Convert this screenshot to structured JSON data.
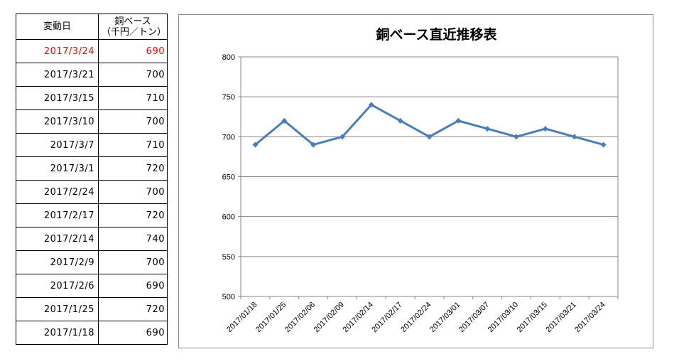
{
  "table": {
    "header_date": "変動日",
    "header_price_line1": "銅ベース",
    "header_price_line2": "（千円／トン）",
    "rows": [
      {
        "date": "2017/3/24",
        "value": "690"
      },
      {
        "date": "2017/3/21",
        "value": "700"
      },
      {
        "date": "2017/3/15",
        "value": "710"
      },
      {
        "date": "2017/3/10",
        "value": "700"
      },
      {
        "date": "2017/3/7",
        "value": "710"
      },
      {
        "date": "2017/3/1",
        "value": "720"
      },
      {
        "date": "2017/2/24",
        "value": "700"
      },
      {
        "date": "2017/2/17",
        "value": "720"
      },
      {
        "date": "2017/2/14",
        "value": "740"
      },
      {
        "date": "2017/2/9",
        "value": "700"
      },
      {
        "date": "2017/2/6",
        "value": "690"
      },
      {
        "date": "2017/1/25",
        "value": "720"
      },
      {
        "date": "2017/1/18",
        "value": "690"
      }
    ],
    "highlight_color": "#ff0000"
  },
  "chart_data": {
    "type": "line",
    "title": "銅ベース直近推移表",
    "xlabel": "",
    "ylabel": "",
    "categories": [
      "2017/01/18",
      "2017/01/25",
      "2017/02/06",
      "2017/02/09",
      "2017/02/14",
      "2017/02/17",
      "2017/02/24",
      "2017/03/01",
      "2017/03/07",
      "2017/03/10",
      "2017/03/15",
      "2017/03/21",
      "2017/03/24"
    ],
    "series": [
      {
        "values": [
          690,
          720,
          690,
          700,
          740,
          720,
          700,
          720,
          710,
          700,
          710,
          700,
          690
        ],
        "color": "#4a7ebb"
      }
    ],
    "ylim": [
      500,
      800
    ],
    "yticks": [
      500,
      550,
      600,
      650,
      700,
      750,
      800
    ],
    "grid": true,
    "legend": "none",
    "marker": "diamond"
  }
}
